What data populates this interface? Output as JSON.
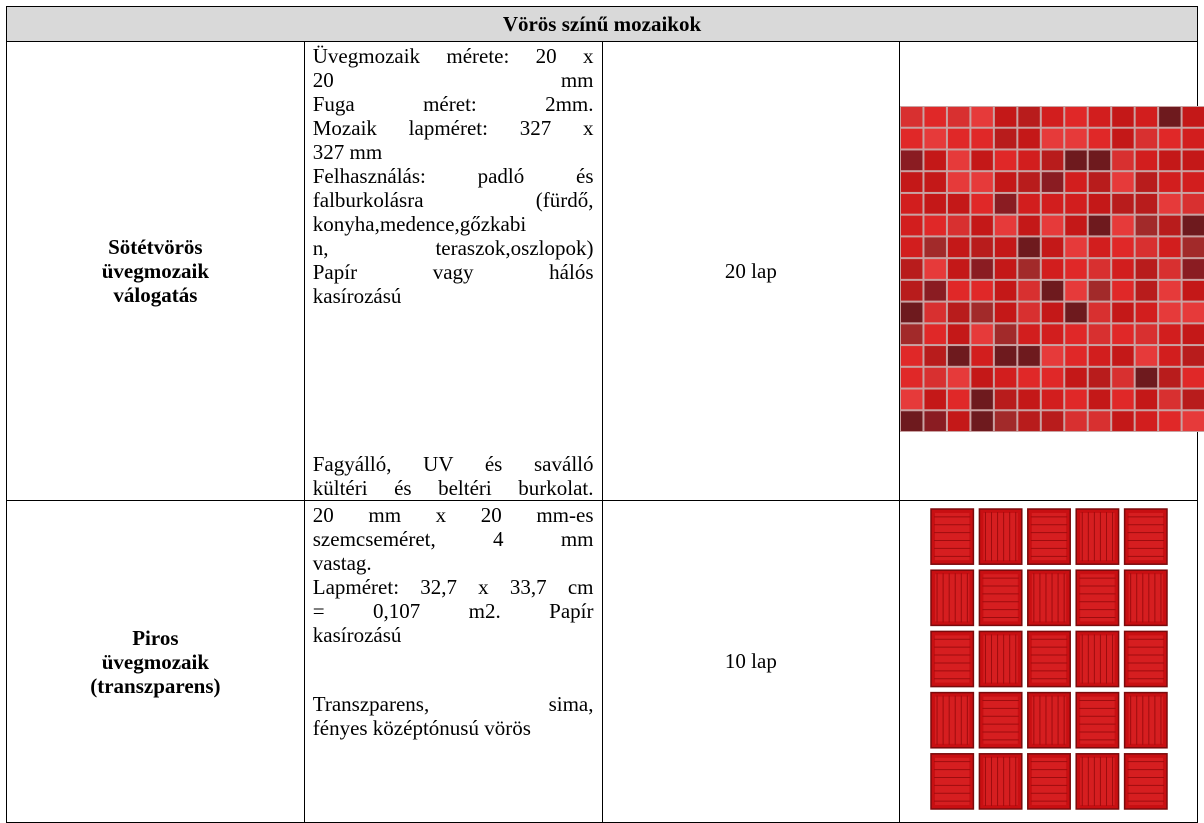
{
  "table": {
    "title": "Vörös színű mozaikok",
    "rows": [
      {
        "name": [
          "Sötétvörös",
          "üvegmozaik",
          "válogatás"
        ],
        "description": [
          [
            "Üvegmozaik mérete: 20 x",
            "20 mm",
            "Fuga méret: 2mm.",
            "Mozaik lapméret: 327 x",
            "327 mm"
          ],
          [
            "Felhasználás: padló és",
            "falburkolásra (fürdő,",
            "konyha,medence,gőzkabi",
            "n, teraszok,oszlopok)",
            "Papír vagy hálós",
            "kasírozású"
          ]
        ],
        "note": [
          "Fagyálló, UV és saválló",
          "kültéri és beltéri burkolat."
        ],
        "quantity": "20 lap"
      },
      {
        "name": [
          "Piros",
          "üvegmozaik",
          "(transzparens)"
        ],
        "description": [
          [
            "20 mm x 20 mm-es",
            "szemcseméret, 4 mm",
            "vastag."
          ],
          [
            "Lapméret: 32,7 x 33,7 cm",
            "= 0,107 m2. Papír",
            "kasírozású"
          ]
        ],
        "note": [
          "Transzparens, sima,",
          "fényes középtónusú vörös"
        ],
        "quantity": "10 lap"
      }
    ]
  }
}
